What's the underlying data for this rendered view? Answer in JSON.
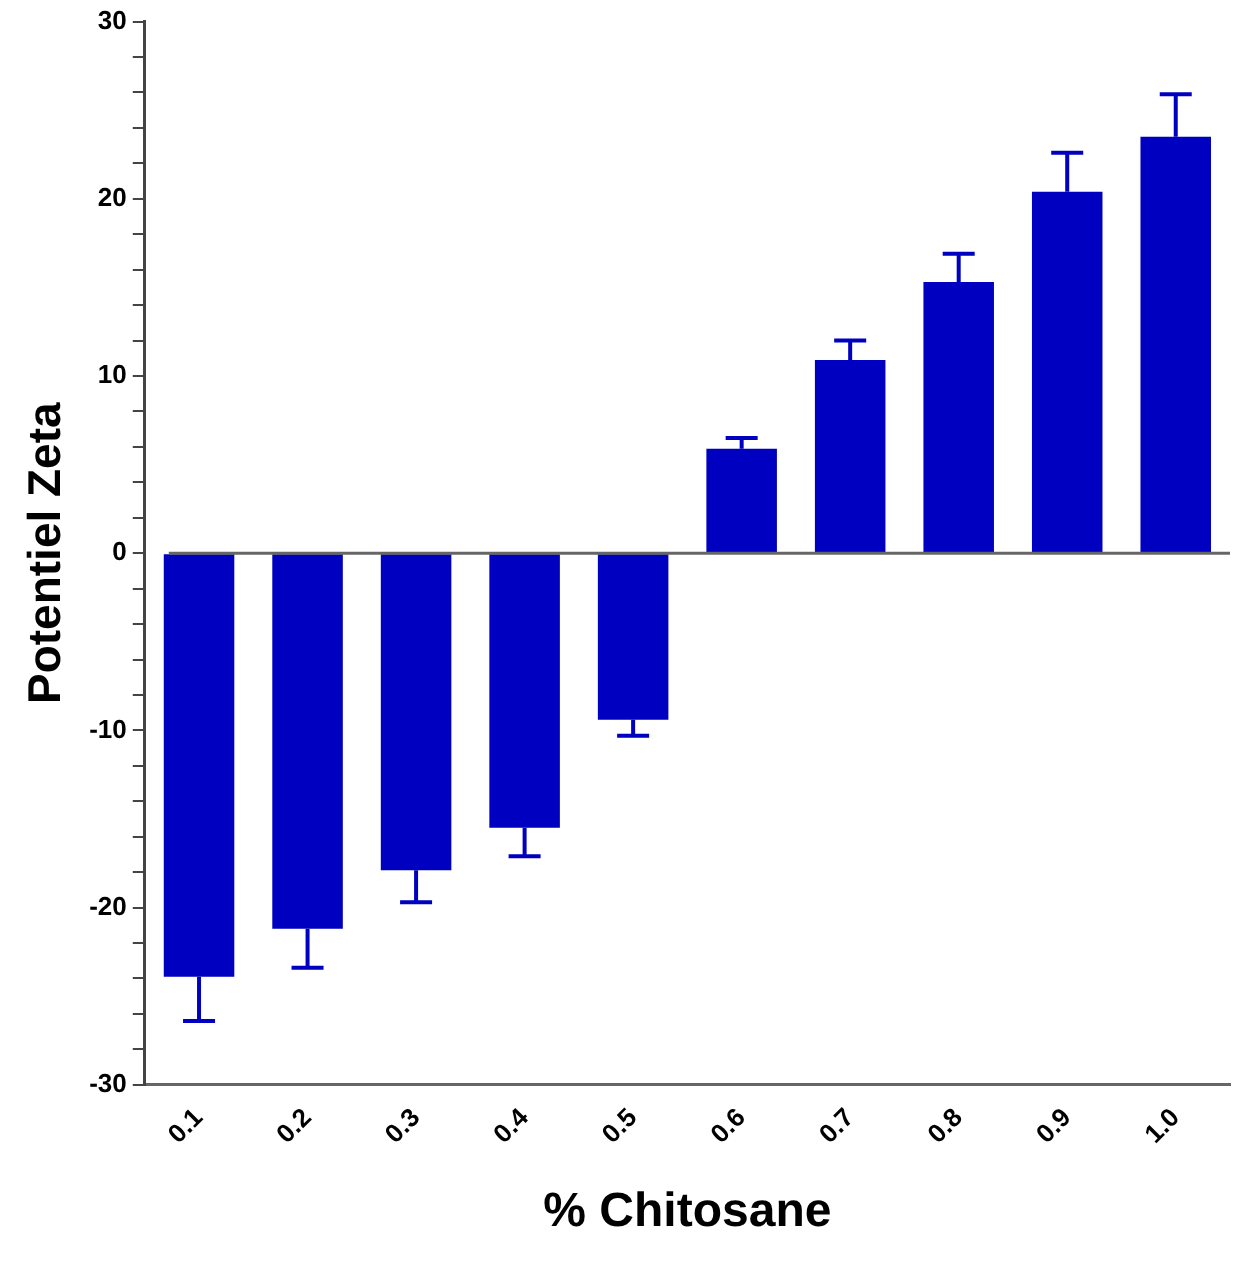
{
  "chart_data": {
    "type": "bar",
    "xlabel": "% Chitosane",
    "ylabel": "Potentiel Zeta",
    "categories": [
      "0.1",
      "0.2",
      "0.3",
      "0.4",
      "0.5",
      "0.6",
      "0.7",
      "0.8",
      "0.9",
      "1.0"
    ],
    "values": [
      -23.9,
      -21.2,
      -17.9,
      -15.5,
      -9.4,
      5.9,
      10.9,
      15.3,
      20.4,
      23.5
    ],
    "errors": [
      [
        -26.4,
        -23.9
      ],
      [
        -23.4,
        -21.2
      ],
      [
        -19.7,
        -17.9
      ],
      [
        -17.1,
        -15.5
      ],
      [
        -10.3,
        -9.4
      ],
      [
        5.9,
        6.5
      ],
      [
        10.9,
        12.0
      ],
      [
        15.3,
        16.9
      ],
      [
        20.4,
        22.6
      ],
      [
        23.5,
        25.9
      ]
    ],
    "color": "#0000c0",
    "ylim": [
      -30,
      30
    ],
    "yticks": [
      -30,
      {
        "value": -28,
        "label": null
      },
      {
        "value": -26,
        "label": null
      },
      {
        "value": -24,
        "label": null
      },
      {
        "value": -22,
        "label": null
      },
      -20,
      {
        "value": -18,
        "label": null
      },
      {
        "value": -16,
        "label": null
      },
      {
        "value": -14,
        "label": null
      },
      {
        "value": -12,
        "label": null
      },
      -10,
      {
        "value": -8,
        "label": null
      },
      {
        "value": -6,
        "label": null
      },
      {
        "value": -4,
        "label": null
      },
      {
        "value": -2,
        "label": null
      },
      0,
      {
        "value": 2,
        "label": null
      },
      {
        "value": 4,
        "label": null
      },
      {
        "value": 6,
        "label": null
      },
      {
        "value": 8,
        "label": null
      },
      10,
      {
        "value": 12,
        "label": null
      },
      {
        "value": 14,
        "label": null
      },
      {
        "value": 16,
        "label": null
      },
      {
        "value": 18,
        "label": null
      },
      20,
      {
        "value": 22,
        "label": null
      },
      {
        "value": 24,
        "label": null
      },
      {
        "value": 26,
        "label": null
      },
      {
        "value": 28,
        "label": null
      },
      30
    ],
    "ref_lines": [
      {
        "axis": "y",
        "value": 0,
        "color": "#666666"
      }
    ],
    "grid": false,
    "legend": false
  }
}
